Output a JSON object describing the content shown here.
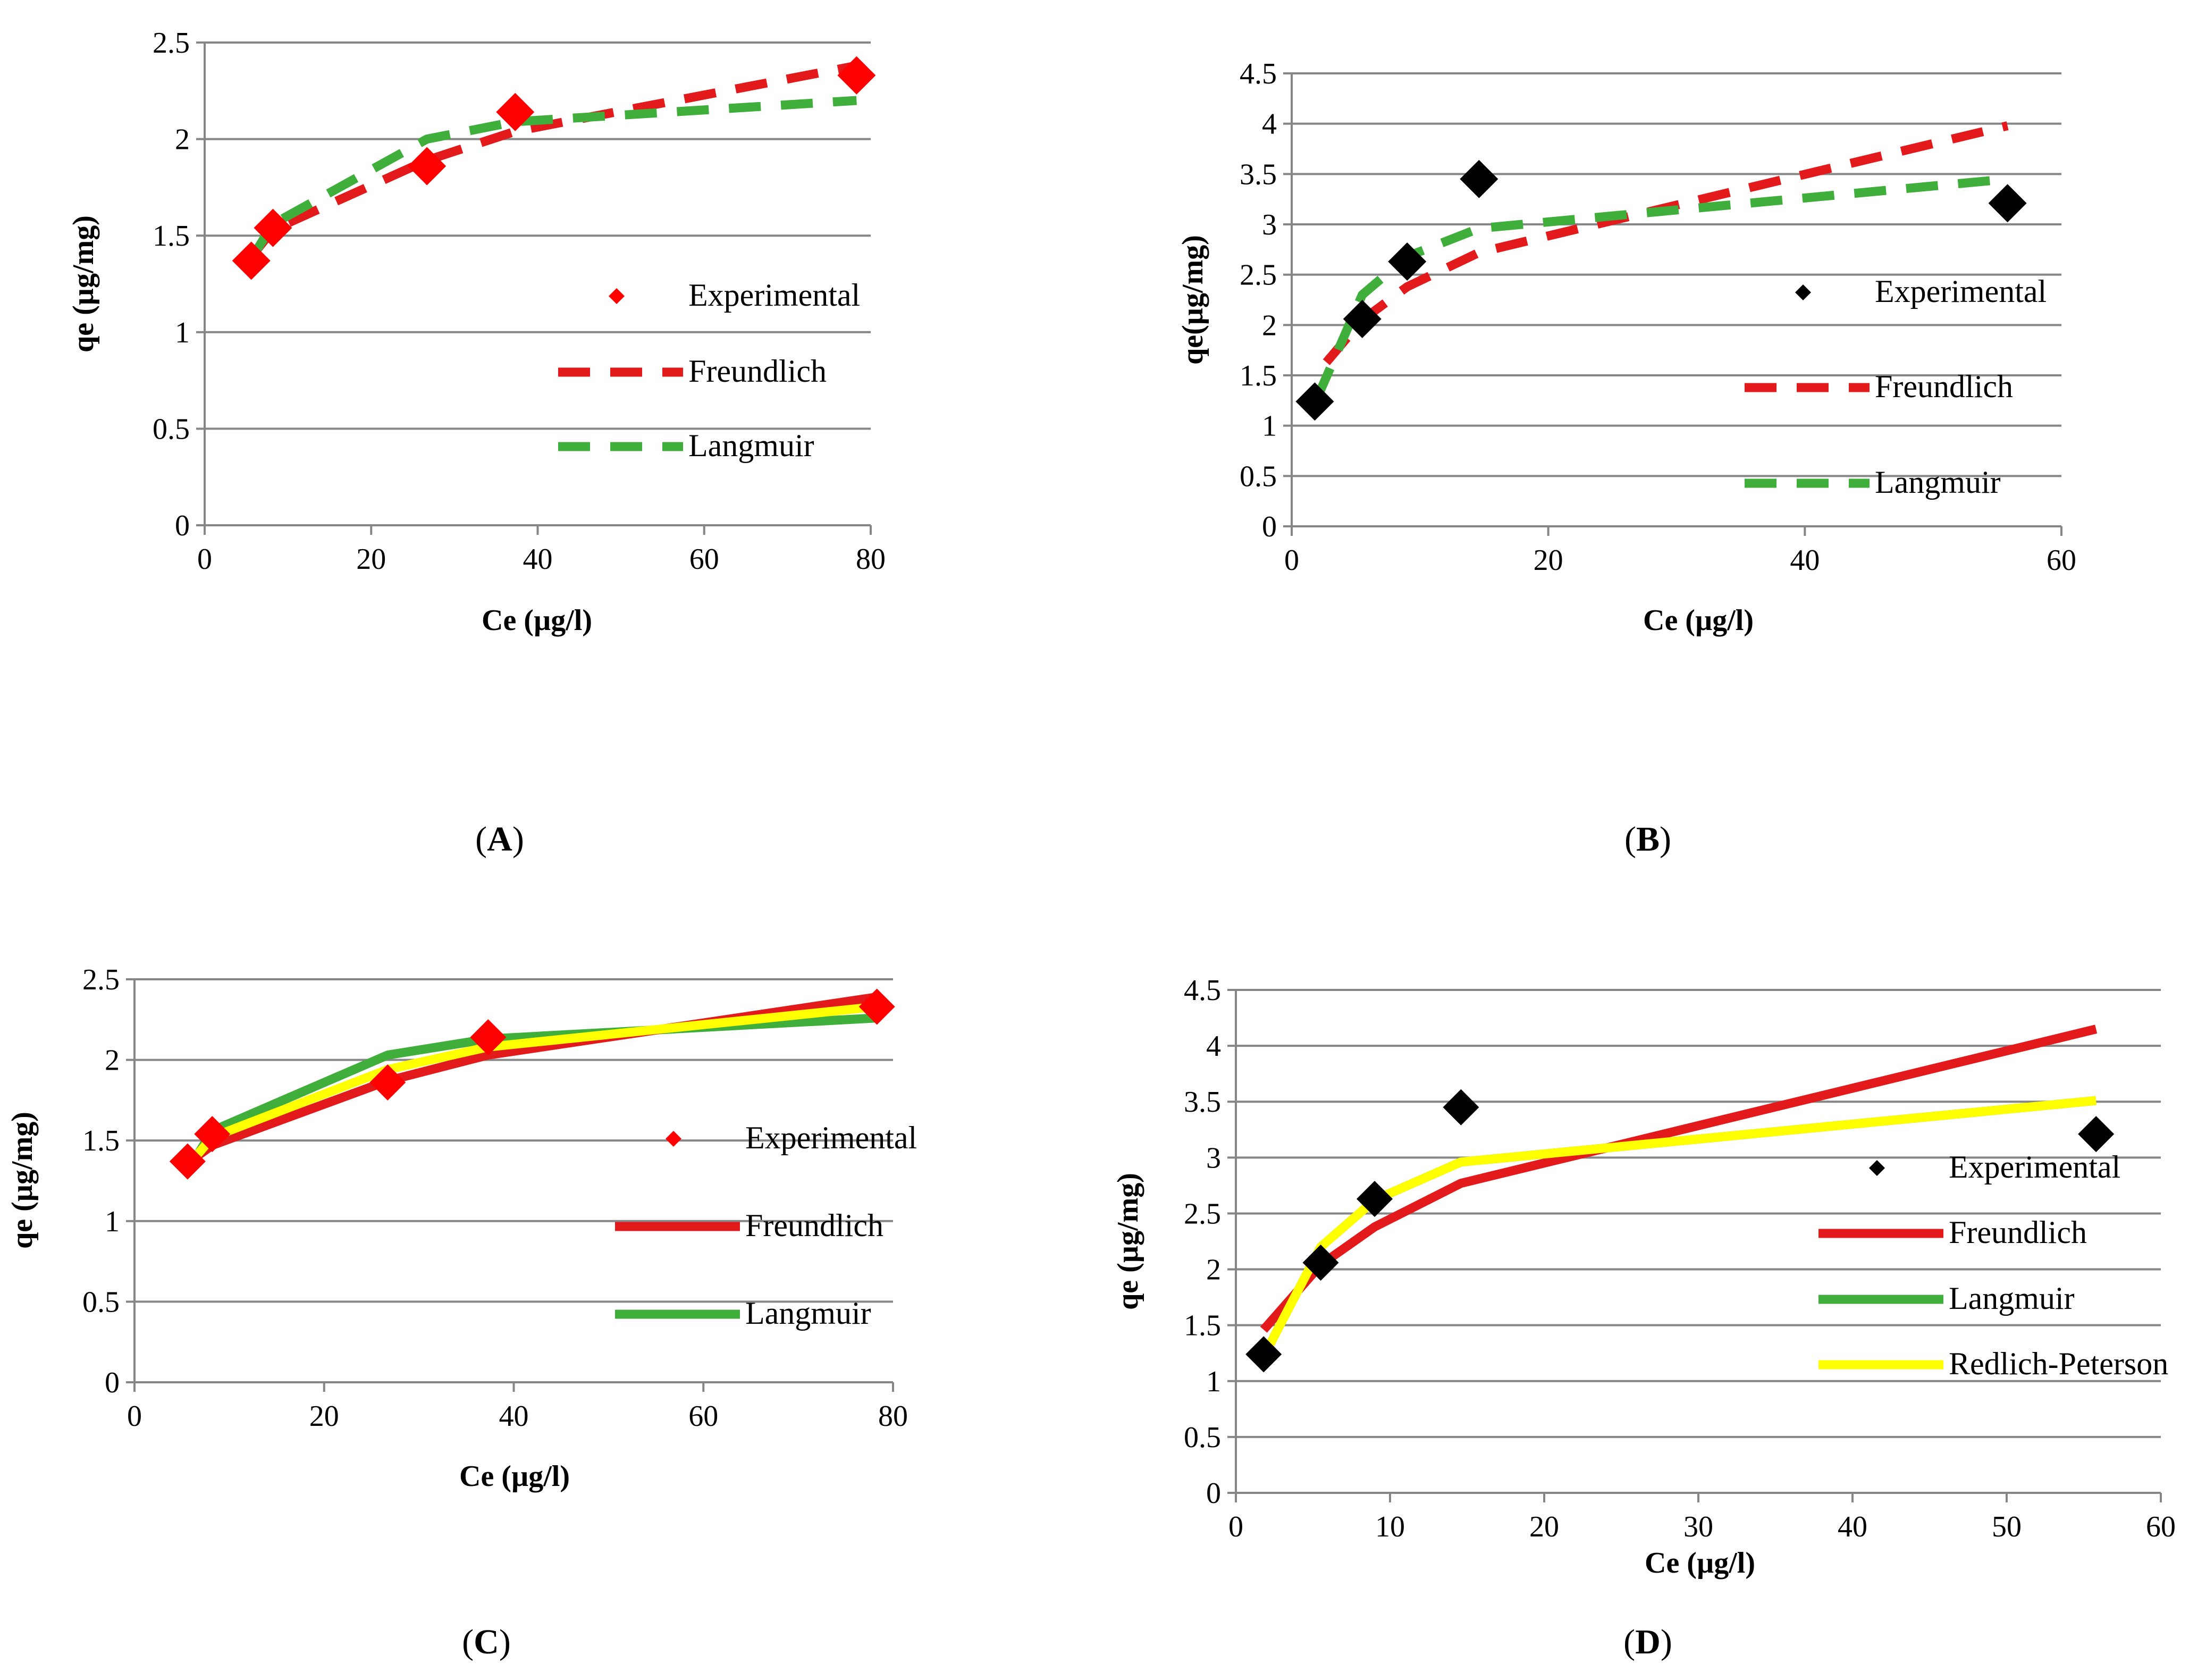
{
  "colors": {
    "experimental_A": "#ff0000",
    "experimental_B": "#000000",
    "freundlich": "#e31a1c",
    "langmuir": "#3fae3a",
    "redlich_peterson": "#ffff00",
    "grid": "#868686",
    "axis": "#868686"
  },
  "chart_data": [
    {
      "panel": "A",
      "type": "scatter",
      "xlabel": "Ce (µg/l)",
      "ylabel": "qe (µg/mg)",
      "xlim": [
        0,
        80
      ],
      "ylim": [
        0,
        2.5
      ],
      "xticks": [
        "0",
        "20",
        "40",
        "60",
        "80"
      ],
      "yticks": [
        "0",
        "0.5",
        "1",
        "1.5",
        "2",
        "2.5"
      ],
      "grid": "horizontal",
      "legend_position": "right",
      "series": [
        {
          "name": "Experimental",
          "style": "marker-diamond",
          "color": "#ff0000",
          "x": [
            5.6,
            8.2,
            26.7,
            37.3,
            78.3
          ],
          "y": [
            1.37,
            1.54,
            1.86,
            2.14,
            2.33
          ]
        },
        {
          "name": "Freundlich",
          "style": "dashed",
          "color": "#e31a1c",
          "x": [
            5.6,
            8.2,
            26.7,
            37.3,
            78.3
          ],
          "y": [
            1.39,
            1.53,
            1.89,
            2.04,
            2.38
          ]
        },
        {
          "name": "Langmuir",
          "style": "dashed",
          "color": "#3fae3a",
          "x": [
            5.6,
            8.2,
            26.7,
            37.3,
            78.3
          ],
          "y": [
            1.38,
            1.56,
            2.0,
            2.09,
            2.2
          ]
        }
      ]
    },
    {
      "panel": "B",
      "type": "scatter",
      "xlabel": "Ce (µg/l)",
      "ylabel": "qe(µg/mg)",
      "xlim": [
        0,
        60
      ],
      "ylim": [
        0,
        4.5
      ],
      "xticks": [
        "0",
        "20",
        "40",
        "60"
      ],
      "yticks": [
        "0",
        "0.5",
        "1",
        "1.5",
        "2",
        "2.5",
        "3",
        "3.5",
        "4",
        "4.5"
      ],
      "grid": "horizontal",
      "legend_position": "right",
      "series": [
        {
          "name": "Experimental",
          "style": "marker-diamond",
          "color": "#000000",
          "x": [
            1.8,
            5.5,
            9.0,
            14.6,
            55.8
          ],
          "y": [
            1.24,
            2.06,
            2.63,
            3.45,
            3.21
          ]
        },
        {
          "name": "Freundlich",
          "style": "dashed",
          "color": "#e31a1c",
          "x": [
            2.7,
            5.5,
            9.0,
            14.6,
            55.8
          ],
          "y": [
            1.63,
            2.05,
            2.38,
            2.72,
            3.98
          ]
        },
        {
          "name": "Langmuir",
          "style": "dashed",
          "color": "#3fae3a",
          "x": [
            2.0,
            5.5,
            9.0,
            14.6,
            55.8
          ],
          "y": [
            1.28,
            2.3,
            2.68,
            2.96,
            3.45
          ]
        }
      ]
    },
    {
      "panel": "C",
      "type": "line",
      "xlabel": "Ce (µg/l)",
      "ylabel": "qe (µg/mg)",
      "xlim": [
        0,
        80
      ],
      "ylim": [
        0,
        2.5
      ],
      "xticks": [
        "0",
        "20",
        "40",
        "60",
        "80"
      ],
      "yticks": [
        "0",
        "0.5",
        "1",
        "1.5",
        "2",
        "2.5"
      ],
      "grid": "horizontal",
      "legend_position": "right",
      "series": [
        {
          "name": "Experimental",
          "style": "marker-diamond",
          "color": "#ff0000",
          "x": [
            5.6,
            8.2,
            26.7,
            37.3,
            78.3
          ],
          "y": [
            1.37,
            1.54,
            1.86,
            2.14,
            2.33
          ]
        },
        {
          "name": "Langmuir",
          "style": "solid",
          "color": "#3fae3a",
          "x": [
            5.6,
            8.2,
            26.7,
            37.3,
            78.3
          ],
          "y": [
            1.31,
            1.56,
            2.03,
            2.13,
            2.26
          ]
        },
        {
          "name": "Freundlich",
          "style": "solid",
          "color": "#e31a1c",
          "x": [
            5.6,
            8.2,
            26.7,
            37.3,
            78.3
          ],
          "y": [
            1.36,
            1.47,
            1.87,
            2.03,
            2.39
          ]
        },
        {
          "name": "",
          "style": "solid",
          "color": "#ffff00",
          "x": [
            5.6,
            8.2,
            26.7,
            37.3,
            78.3
          ],
          "y": [
            1.34,
            1.52,
            1.94,
            2.08,
            2.33
          ]
        }
      ]
    },
    {
      "panel": "D",
      "type": "line",
      "xlabel": "Ce (µg/l)",
      "ylabel": "qe (µg/mg)",
      "xlim": [
        0,
        60
      ],
      "ylim": [
        0,
        4.5
      ],
      "xticks": [
        "0",
        "10",
        "20",
        "30",
        "40",
        "50",
        "60"
      ],
      "yticks": [
        "0",
        "0.5",
        "1",
        "1.5",
        "2",
        "2.5",
        "3",
        "3.5",
        "4",
        "4.5"
      ],
      "grid": "horizontal",
      "legend_position": "right",
      "series": [
        {
          "name": "Experimental",
          "style": "marker-diamond",
          "color": "#000000",
          "x": [
            1.8,
            5.5,
            9.0,
            14.6,
            55.8
          ],
          "y": [
            1.24,
            2.06,
            2.63,
            3.45,
            3.21
          ]
        },
        {
          "name": "Langmuir",
          "style": "solid",
          "color": "#3fae3a",
          "x": [
            1.8,
            5.5,
            9.0,
            14.6,
            55.8
          ],
          "y": [
            1.22,
            2.2,
            2.62,
            2.96,
            3.51
          ]
        },
        {
          "name": "Freundlich",
          "style": "solid",
          "color": "#e31a1c",
          "x": [
            1.8,
            5.5,
            9.0,
            14.6,
            55.8
          ],
          "y": [
            1.46,
            2.04,
            2.38,
            2.77,
            4.15
          ]
        },
        {
          "name": "Redlich-Peterson",
          "style": "solid",
          "color": "#ffff00",
          "x": [
            1.8,
            5.5,
            9.0,
            14.6,
            55.8
          ],
          "y": [
            1.22,
            2.2,
            2.62,
            2.96,
            3.51
          ]
        }
      ]
    }
  ],
  "panel_labels": [
    "A",
    "B",
    "C",
    "D"
  ]
}
